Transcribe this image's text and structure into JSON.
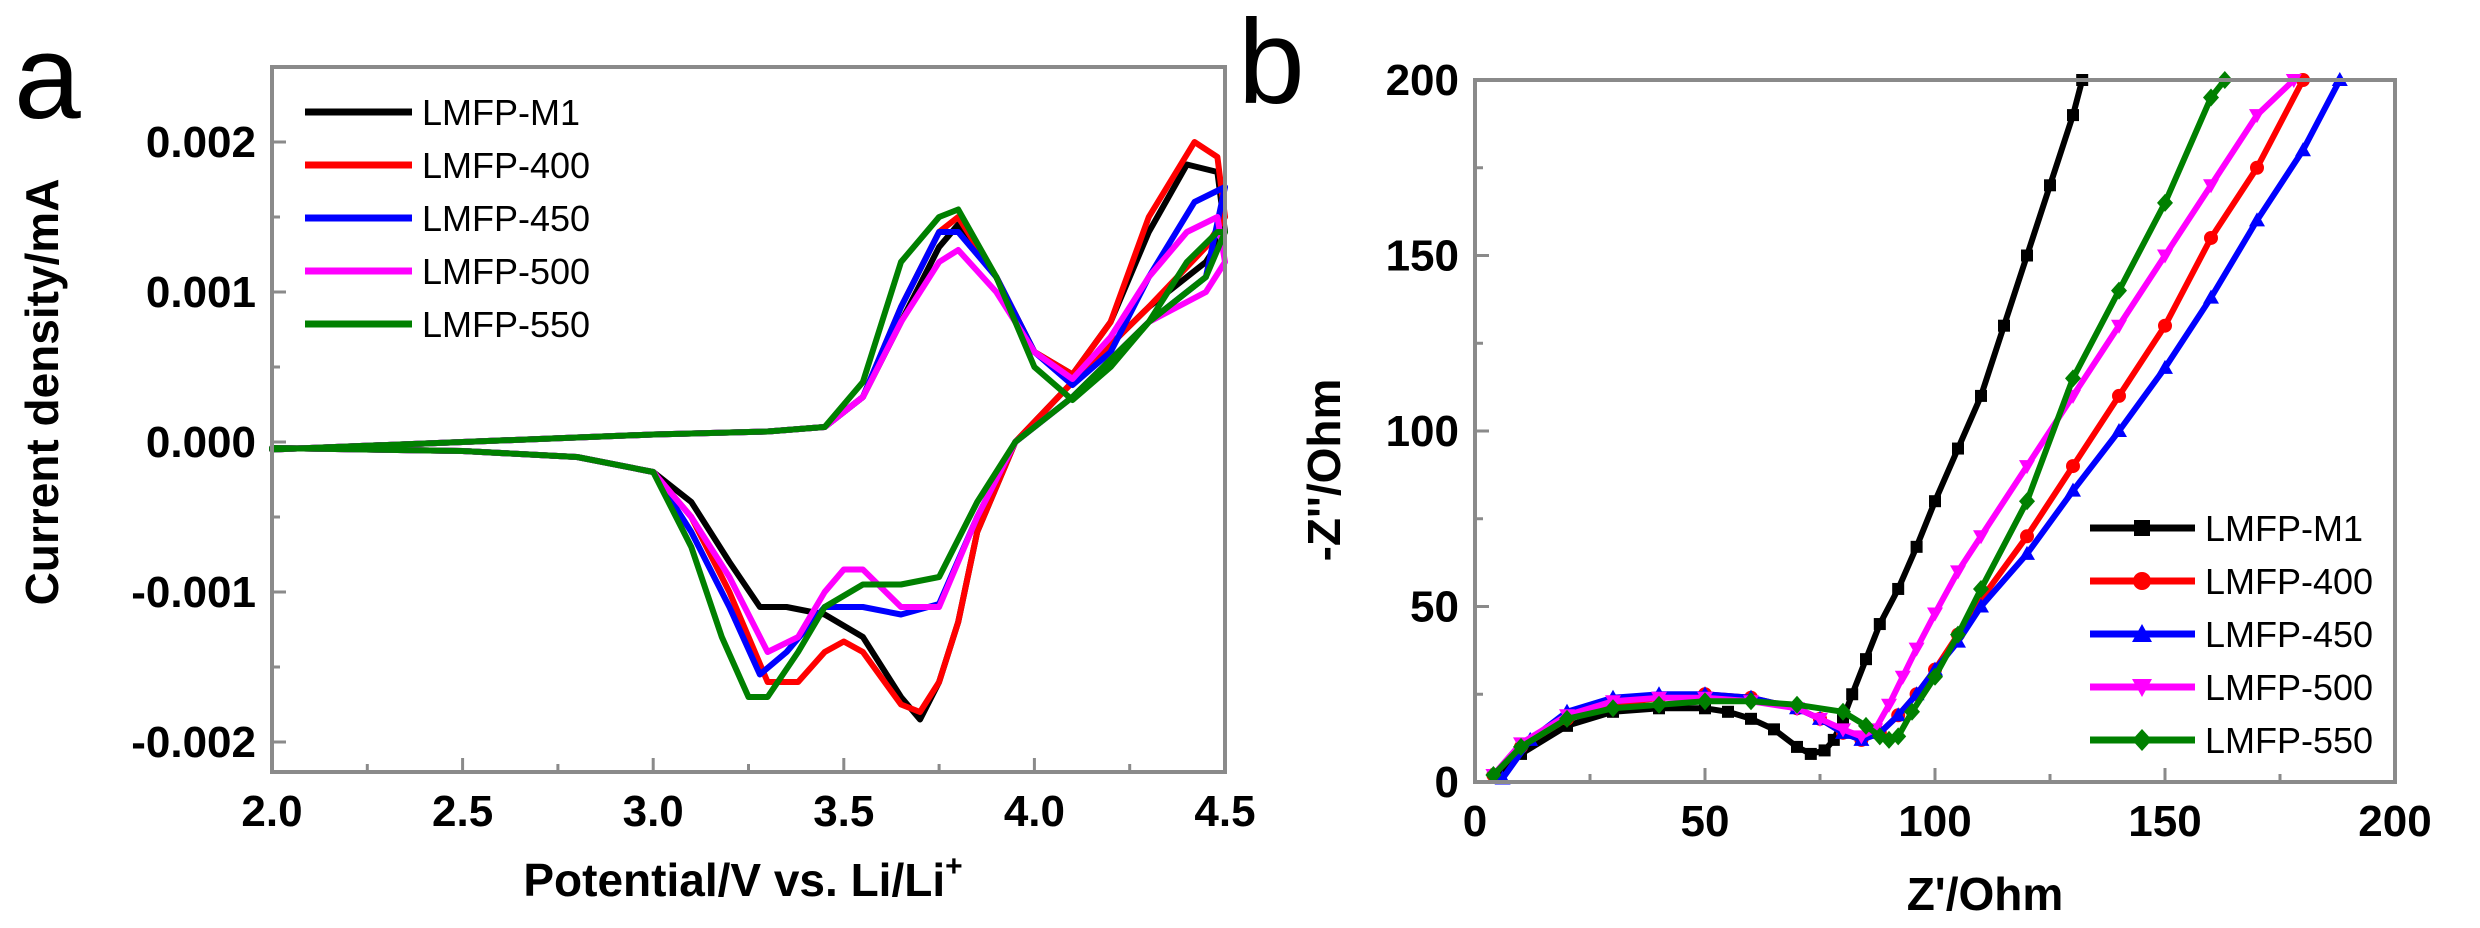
{
  "chart_data": [
    {
      "type": "line",
      "panel_label": "a",
      "xlabel_main": "Potential/V vs. Li/Li",
      "xlabel_sup": "+",
      "ylabel": "Current density/mA",
      "xlim": [
        2.0,
        4.5
      ],
      "ylim": [
        -0.0022,
        0.0025
      ],
      "xticks": [
        "2.0",
        "2.5",
        "3.0",
        "3.5",
        "4.0",
        "4.5"
      ],
      "yticks": [
        "0.002",
        "0.001",
        "0.000",
        "-0.001",
        "-0.002"
      ],
      "legend_position": "top-left",
      "series": [
        {
          "name": "LMFP-M1",
          "color": "#000000",
          "x": [
            2.0,
            2.5,
            3.0,
            3.3,
            3.45,
            3.55,
            3.65,
            3.75,
            3.8,
            3.9,
            4.0,
            4.1,
            4.2,
            4.3,
            4.4,
            4.48,
            4.5,
            4.45,
            4.3,
            4.1,
            3.95,
            3.85,
            3.8,
            3.75,
            3.7,
            3.65,
            3.55,
            3.45,
            3.35,
            3.28,
            3.2,
            3.1,
            3.0,
            2.8,
            2.5,
            2.0
          ],
          "y": [
            -5e-05,
            0.0,
            5e-05,
            7e-05,
            0.0001,
            0.0003,
            0.0008,
            0.0013,
            0.00145,
            0.0011,
            0.0006,
            0.00045,
            0.0008,
            0.0014,
            0.00185,
            0.0018,
            0.0014,
            0.0012,
            0.0009,
            0.0004,
            0.0,
            -0.0006,
            -0.0012,
            -0.0016,
            -0.00185,
            -0.0017,
            -0.0013,
            -0.00115,
            -0.0011,
            -0.0011,
            -0.0008,
            -0.0004,
            -0.0002,
            -0.0001,
            -6e-05,
            -4e-05
          ]
        },
        {
          "name": "LMFP-400",
          "color": "#ff0000",
          "x": [
            2.0,
            2.5,
            3.0,
            3.3,
            3.45,
            3.55,
            3.65,
            3.75,
            3.8,
            3.9,
            4.0,
            4.1,
            4.2,
            4.3,
            4.42,
            4.48,
            4.5,
            4.45,
            4.3,
            4.1,
            3.95,
            3.85,
            3.8,
            3.75,
            3.7,
            3.65,
            3.55,
            3.5,
            3.45,
            3.38,
            3.3,
            3.2,
            3.1,
            3.0,
            2.8,
            2.5,
            2.0
          ],
          "y": [
            -5e-05,
            0.0,
            5e-05,
            7e-05,
            0.0001,
            0.0003,
            0.0009,
            0.0014,
            0.0015,
            0.0011,
            0.0006,
            0.00045,
            0.0008,
            0.0015,
            0.002,
            0.0019,
            0.0015,
            0.0013,
            0.0009,
            0.0004,
            0.0,
            -0.0006,
            -0.0012,
            -0.0016,
            -0.0018,
            -0.00175,
            -0.0014,
            -0.00133,
            -0.0014,
            -0.0016,
            -0.0016,
            -0.001,
            -0.0005,
            -0.0002,
            -0.0001,
            -6e-05,
            -4e-05
          ]
        },
        {
          "name": "LMFP-450",
          "color": "#0000ff",
          "x": [
            2.0,
            2.5,
            3.0,
            3.3,
            3.45,
            3.55,
            3.65,
            3.75,
            3.8,
            3.9,
            4.0,
            4.1,
            4.2,
            4.3,
            4.42,
            4.5,
            4.45,
            4.3,
            4.1,
            3.95,
            3.85,
            3.75,
            3.65,
            3.55,
            3.45,
            3.35,
            3.28,
            3.2,
            3.1,
            3.0,
            2.8,
            2.5,
            2.0
          ],
          "y": [
            -5e-05,
            0.0,
            5e-05,
            7e-05,
            0.0001,
            0.0003,
            0.0009,
            0.0014,
            0.0014,
            0.0011,
            0.0006,
            0.00038,
            0.0006,
            0.0011,
            0.0016,
            0.0017,
            0.0011,
            0.0008,
            0.0003,
            0.0,
            -0.0005,
            -0.00108,
            -0.00115,
            -0.0011,
            -0.0011,
            -0.0014,
            -0.00155,
            -0.0011,
            -0.0006,
            -0.0002,
            -0.0001,
            -6e-05,
            -4e-05
          ]
        },
        {
          "name": "LMFP-500",
          "color": "#ff00ff",
          "x": [
            2.0,
            2.5,
            3.0,
            3.3,
            3.45,
            3.55,
            3.65,
            3.75,
            3.8,
            3.9,
            4.0,
            4.1,
            4.2,
            4.3,
            4.4,
            4.48,
            4.5,
            4.45,
            4.3,
            4.1,
            3.95,
            3.85,
            3.75,
            3.65,
            3.55,
            3.5,
            3.45,
            3.38,
            3.3,
            3.2,
            3.1,
            3.0,
            2.8,
            2.5,
            2.0
          ],
          "y": [
            -5e-05,
            0.0,
            5e-05,
            7e-05,
            0.0001,
            0.0003,
            0.0008,
            0.0012,
            0.00128,
            0.001,
            0.0006,
            0.00042,
            0.0007,
            0.0011,
            0.0014,
            0.0015,
            0.0012,
            0.001,
            0.0008,
            0.0003,
            0.0,
            -0.0005,
            -0.0011,
            -0.0011,
            -0.00085,
            -0.00085,
            -0.001,
            -0.0013,
            -0.0014,
            -0.0009,
            -0.0005,
            -0.0002,
            -0.0001,
            -6e-05,
            -4e-05
          ]
        },
        {
          "name": "LMFP-550",
          "color": "#008000",
          "x": [
            2.0,
            2.5,
            3.0,
            3.3,
            3.45,
            3.55,
            3.65,
            3.75,
            3.8,
            3.9,
            4.0,
            4.1,
            4.2,
            4.3,
            4.4,
            4.48,
            4.5,
            4.45,
            4.3,
            4.1,
            3.95,
            3.85,
            3.75,
            3.65,
            3.55,
            3.45,
            3.38,
            3.3,
            3.25,
            3.18,
            3.1,
            3.0,
            2.8,
            2.5,
            2.0
          ],
          "y": [
            -5e-05,
            0.0,
            5e-05,
            7e-05,
            0.0001,
            0.0004,
            0.0012,
            0.0015,
            0.00155,
            0.0011,
            0.0005,
            0.00028,
            0.0005,
            0.0008,
            0.0012,
            0.0014,
            0.0014,
            0.0011,
            0.0008,
            0.0003,
            0.0,
            -0.0004,
            -0.0009,
            -0.00095,
            -0.00095,
            -0.0011,
            -0.0014,
            -0.0017,
            -0.0017,
            -0.0013,
            -0.0007,
            -0.0002,
            -0.0001,
            -6e-05,
            -4e-05
          ]
        }
      ]
    },
    {
      "type": "line",
      "panel_label": "b",
      "xlabel": "Z'/Ohm",
      "ylabel": "-Z''/Ohm",
      "xlim": [
        0,
        200
      ],
      "ylim": [
        0,
        200
      ],
      "xticks": [
        "0",
        "50",
        "100",
        "150",
        "200"
      ],
      "yticks": [
        "0",
        "50",
        "100",
        "150",
        "200"
      ],
      "legend_position": "bottom-right",
      "series": [
        {
          "name": "LMFP-M1",
          "color": "#000000",
          "marker": "square",
          "x": [
            5,
            10,
            20,
            30,
            40,
            50,
            55,
            60,
            65,
            70,
            73,
            76,
            78,
            80,
            82,
            85,
            88,
            92,
            96,
            100,
            105,
            110,
            115,
            120,
            125,
            130,
            132
          ],
          "y": [
            2,
            8,
            16,
            20,
            21,
            21,
            20,
            18,
            15,
            10,
            8,
            9,
            12,
            18,
            25,
            35,
            45,
            55,
            67,
            80,
            95,
            110,
            130,
            150,
            170,
            190,
            200
          ]
        },
        {
          "name": "LMFP-400",
          "color": "#ff0000",
          "marker": "circle",
          "x": [
            4,
            10,
            20,
            30,
            40,
            50,
            60,
            70,
            75,
            80,
            84,
            88,
            92,
            96,
            100,
            105,
            110,
            120,
            130,
            140,
            150,
            160,
            170,
            180
          ],
          "y": [
            2,
            10,
            18,
            22,
            24,
            25,
            24,
            21,
            18,
            14,
            12,
            14,
            19,
            25,
            32,
            42,
            52,
            70,
            90,
            110,
            130,
            155,
            175,
            200
          ]
        },
        {
          "name": "LMFP-450",
          "color": "#0000ff",
          "marker": "triangle-up",
          "x": [
            6,
            12,
            20,
            30,
            40,
            50,
            60,
            70,
            75,
            80,
            84,
            88,
            92,
            96,
            100,
            105,
            110,
            120,
            130,
            140,
            150,
            160,
            170,
            180,
            188
          ],
          "y": [
            1,
            12,
            20,
            24,
            25,
            25,
            24,
            21,
            18,
            14,
            12,
            14,
            19,
            25,
            32,
            40,
            50,
            65,
            83,
            100,
            118,
            138,
            160,
            180,
            200
          ]
        },
        {
          "name": "LMFP-500",
          "color": "#ff00ff",
          "marker": "triangle-down",
          "x": [
            4,
            10,
            20,
            30,
            40,
            50,
            60,
            70,
            75,
            80,
            84,
            87,
            90,
            93,
            96,
            100,
            105,
            110,
            120,
            130,
            140,
            150,
            160,
            170,
            178
          ],
          "y": [
            2,
            11,
            19,
            23,
            24,
            24,
            23,
            21,
            18,
            15,
            13,
            15,
            22,
            30,
            38,
            48,
            60,
            70,
            90,
            110,
            130,
            150,
            170,
            190,
            200
          ]
        },
        {
          "name": "LMFP-550",
          "color": "#008000",
          "marker": "diamond",
          "x": [
            4,
            10,
            20,
            30,
            40,
            50,
            60,
            70,
            80,
            85,
            88,
            90,
            92,
            95,
            100,
            105,
            110,
            120,
            130,
            140,
            150,
            160,
            163
          ],
          "y": [
            2,
            10,
            18,
            21,
            22,
            23,
            23,
            22,
            20,
            16,
            13,
            12,
            13,
            20,
            30,
            42,
            55,
            80,
            115,
            140,
            165,
            195,
            200
          ]
        }
      ]
    }
  ]
}
